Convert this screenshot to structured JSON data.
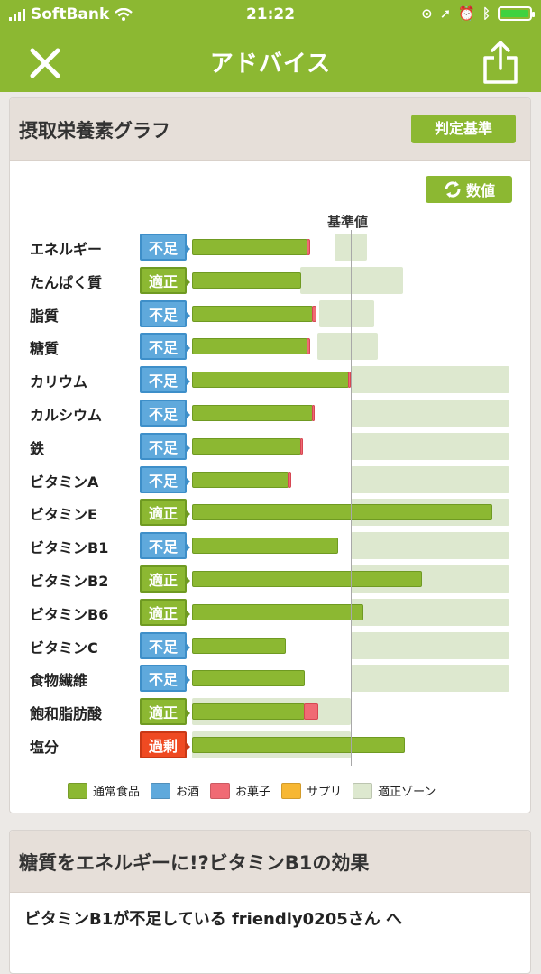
{
  "status_bar": {
    "carrier": "SoftBank",
    "time": "21:22"
  },
  "nav": {
    "title": "アドバイス",
    "close_icon": "close-icon",
    "share_icon": "share-icon"
  },
  "graph_card": {
    "title": "摂取栄養素グラフ",
    "criteria_button": "判定基準",
    "value_button": "数値",
    "reference_label": "基準値"
  },
  "colors": {
    "food": "#8cb832",
    "alcohol": "#5fa9dc",
    "snack": "#f06a74",
    "supplement": "#f7b733",
    "zone": "#dde8cf",
    "status_under": "#5fa9dc",
    "status_ok": "#8cb832",
    "status_over": "#ef4a22"
  },
  "chart_data": {
    "type": "bar",
    "reference": 1,
    "rows": [
      {
        "name": "エネルギー",
        "status": "不足",
        "kind": "under",
        "food": 0.73,
        "snack": 0.02,
        "zone": [
          0.9,
          1.1
        ]
      },
      {
        "name": "たんぱく質",
        "status": "適正",
        "kind": "ok",
        "food": 0.69,
        "snack": 0.0,
        "zone": [
          0.68,
          1.33
        ]
      },
      {
        "name": "脂質",
        "status": "不足",
        "kind": "under",
        "food": 0.76,
        "snack": 0.03,
        "zone": [
          0.8,
          1.15
        ]
      },
      {
        "name": "糖質",
        "status": "不足",
        "kind": "under",
        "food": 0.73,
        "snack": 0.02,
        "zone": [
          0.79,
          1.17
        ]
      },
      {
        "name": "カリウム",
        "status": "不足",
        "kind": "under",
        "food": 0.99,
        "snack": 0.01,
        "zone": [
          1.0,
          2.0
        ]
      },
      {
        "name": "カルシウム",
        "status": "不足",
        "kind": "under",
        "food": 0.76,
        "snack": 0.01,
        "zone": [
          1.0,
          2.0
        ]
      },
      {
        "name": "鉄",
        "status": "不足",
        "kind": "under",
        "food": 0.69,
        "snack": 0.01,
        "zone": [
          1.0,
          2.0
        ]
      },
      {
        "name": "ビタミンA",
        "status": "不足",
        "kind": "under",
        "food": 0.61,
        "snack": 0.02,
        "zone": [
          1.0,
          2.0
        ]
      },
      {
        "name": "ビタミンE",
        "status": "適正",
        "kind": "ok",
        "food": 1.89,
        "snack": 0.0,
        "zone": [
          1.0,
          2.0
        ]
      },
      {
        "name": "ビタミンB1",
        "status": "不足",
        "kind": "under",
        "food": 0.92,
        "snack": 0.0,
        "zone": [
          1.0,
          2.0
        ]
      },
      {
        "name": "ビタミンB2",
        "status": "適正",
        "kind": "ok",
        "food": 1.45,
        "snack": 0.0,
        "zone": [
          1.0,
          2.0
        ]
      },
      {
        "name": "ビタミンB6",
        "status": "適正",
        "kind": "ok",
        "food": 1.08,
        "snack": 0.0,
        "zone": [
          1.0,
          2.0
        ]
      },
      {
        "name": "ビタミンC",
        "status": "不足",
        "kind": "under",
        "food": 0.59,
        "snack": 0.0,
        "zone": [
          1.0,
          2.0
        ]
      },
      {
        "name": "食物繊維",
        "status": "不足",
        "kind": "under",
        "food": 0.71,
        "snack": 0.0,
        "zone": [
          1.0,
          2.0
        ]
      },
      {
        "name": "飽和脂肪酸",
        "status": "適正",
        "kind": "ok",
        "food": 0.71,
        "snack": 0.09,
        "zone": [
          0.0,
          1.0
        ]
      },
      {
        "name": "塩分",
        "status": "過剰",
        "kind": "over",
        "food": 1.34,
        "snack": 0.0,
        "zone": [
          0.0,
          1.0
        ]
      }
    ],
    "legend": [
      {
        "label": "通常食品",
        "color": "#8cb832"
      },
      {
        "label": "お酒",
        "color": "#5fa9dc"
      },
      {
        "label": "お菓子",
        "color": "#f06a74"
      },
      {
        "label": "サプリ",
        "color": "#f7b733"
      },
      {
        "label": "適正ゾーン",
        "color": "#dde8cf"
      }
    ]
  },
  "article_card": {
    "title": "糖質をエネルギーに!?ビタミンB1の効果",
    "body": "ビタミンB1が不足している friendly0205さん へ"
  }
}
